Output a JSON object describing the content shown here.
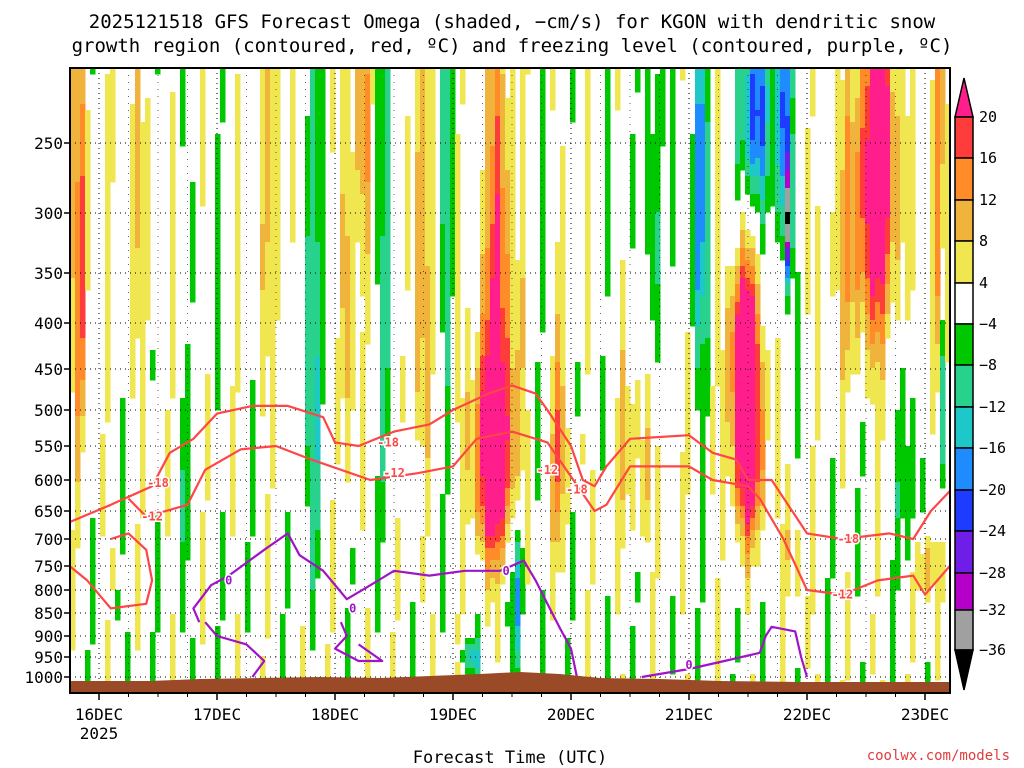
{
  "chart_data": {
    "type": "heatmap",
    "title_line1": "2025121518 GFS Forecast Omega (shaded, −cm/s) for KGON with dendritic snow",
    "title_line2": "growth region (contoured, red, ºC) and freezing level (contoured, purple, ºC)",
    "xlabel": "Forecast Time (UTC)",
    "ylabel": "",
    "credit": "coolwx.com/models",
    "y_ticks": [
      "250",
      "300",
      "350",
      "400",
      "450",
      "500",
      "550",
      "600",
      "650",
      "700",
      "750",
      "800",
      "850",
      "900",
      "950",
      "1000"
    ],
    "y_values": [
      250,
      300,
      350,
      400,
      450,
      500,
      550,
      600,
      650,
      700,
      750,
      800,
      850,
      900,
      950,
      1000
    ],
    "ylim": [
      1000,
      200
    ],
    "x_ticks": [
      {
        "label": "16DEC",
        "sub": "2025",
        "day": 0
      },
      {
        "label": "17DEC",
        "sub": "",
        "day": 1
      },
      {
        "label": "18DEC",
        "sub": "",
        "day": 2
      },
      {
        "label": "19DEC",
        "sub": "",
        "day": 3
      },
      {
        "label": "20DEC",
        "sub": "",
        "day": 4
      },
      {
        "label": "21DEC",
        "sub": "",
        "day": 5
      },
      {
        "label": "22DEC",
        "sub": "",
        "day": 6
      },
      {
        "label": "23DEC",
        "sub": "",
        "day": 7
      }
    ],
    "xlim_days": [
      -0.25,
      7.25
    ],
    "colorbar": {
      "labels": [
        "20",
        "16",
        "12",
        "8",
        "4",
        "−4",
        "−8",
        "−12",
        "−16",
        "−20",
        "−24",
        "−28",
        "−32",
        "−36"
      ],
      "colors": [
        "#ff1e8c",
        "#ff3c3c",
        "#ff8c28",
        "#f0b43c",
        "#f0e650",
        "#ffffff",
        "#00c800",
        "#28d28c",
        "#1ec8c8",
        "#1e8cff",
        "#1e3cff",
        "#6e1ee6",
        "#b400c8",
        "#a0a0a0",
        "#000000"
      ]
    },
    "contours": {
      "dgz_levels": [
        "-18",
        "-12"
      ],
      "freezing_level": "0",
      "dgz_color": "#ff4646",
      "freezing_color": "#a014c8",
      "terrain_color": "#9b4a28"
    }
  }
}
